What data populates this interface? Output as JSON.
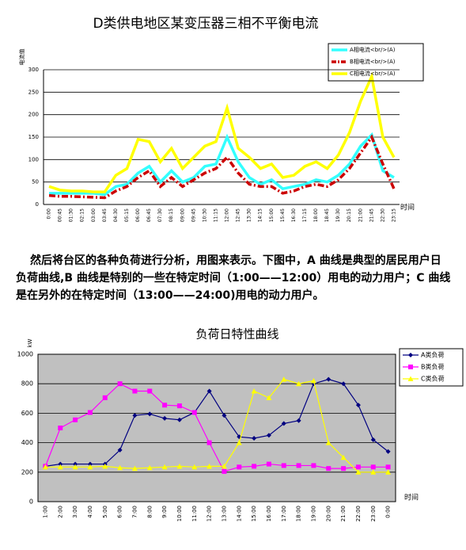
{
  "chart_data": [
    {
      "type": "line",
      "title": "D类供电地区某变压器三相不平衡电流",
      "ylabel": "电流值",
      "xlabel": "时间",
      "categories": [
        "0:00",
        "00:45",
        "01:30",
        "02:15",
        "03:00",
        "03:45",
        "04:30",
        "05:15",
        "06:00",
        "06:45",
        "07:30",
        "08:15",
        "09:00",
        "09:45",
        "10:30",
        "11:15",
        "12:00",
        "12:45",
        "13:30",
        "14:15",
        "15:00",
        "15:45",
        "16:30",
        "17:15",
        "18:00",
        "18:45",
        "19:30",
        "20:15",
        "21:00",
        "21:45",
        "22:30",
        "23:15"
      ],
      "series": [
        {
          "name": "A相电流<br/>(A)",
          "color": "#33ffff",
          "values": [
            25,
            25,
            25,
            25,
            25,
            22,
            40,
            45,
            70,
            85,
            50,
            75,
            50,
            60,
            85,
            90,
            150,
            95,
            60,
            45,
            55,
            35,
            40,
            45,
            55,
            50,
            65,
            90,
            130,
            155,
            75,
            60
          ]
        },
        {
          "name": "B相电流<br/>(A)",
          "color": "#cc0000",
          "line_style": "dashed",
          "values": [
            20,
            18,
            18,
            17,
            16,
            15,
            30,
            40,
            60,
            75,
            40,
            60,
            40,
            55,
            70,
            80,
            105,
            70,
            45,
            40,
            40,
            25,
            30,
            40,
            45,
            40,
            55,
            80,
            115,
            150,
            90,
            35
          ]
        },
        {
          "name": "C相电流<br/>(A)",
          "color": "#ffff00",
          "values": [
            40,
            32,
            30,
            30,
            28,
            28,
            65,
            80,
            145,
            140,
            95,
            125,
            80,
            105,
            130,
            140,
            215,
            125,
            105,
            80,
            90,
            60,
            65,
            85,
            95,
            80,
            110,
            160,
            230,
            285,
            150,
            105
          ]
        }
      ],
      "ylim": [
        0,
        300
      ],
      "yticks": [
        0,
        50,
        100,
        150,
        200,
        250,
        300
      ],
      "grid": true,
      "legend": "top-right"
    },
    {
      "type": "line",
      "title": "负荷日特性曲线",
      "ylabel": "kW",
      "xlabel": "时间",
      "categories": [
        "1:00",
        "2:00",
        "3:00",
        "4:00",
        "5:00",
        "6:00",
        "7:00",
        "8:00",
        "9:00",
        "10:00",
        "11:00",
        "12:00",
        "13:00",
        "14:00",
        "15:00",
        "16:00",
        "17:00",
        "18:00",
        "19:00",
        "20:00",
        "21:00",
        "22:00",
        "23:00",
        "0:00"
      ],
      "series": [
        {
          "name": "A类负荷",
          "color": "#000080",
          "marker": "diamond",
          "values": [
            240,
            255,
            255,
            255,
            255,
            350,
            585,
            595,
            565,
            555,
            605,
            750,
            585,
            440,
            430,
            450,
            530,
            550,
            800,
            830,
            800,
            655,
            420,
            340
          ]
        },
        {
          "name": "B类负荷",
          "color": "#ff00ff",
          "marker": "square",
          "values": [
            240,
            500,
            555,
            605,
            705,
            800,
            750,
            750,
            655,
            650,
            605,
            400,
            205,
            235,
            240,
            255,
            245,
            245,
            245,
            225,
            225,
            235,
            235,
            235
          ]
        },
        {
          "name": "C类负荷",
          "color": "#ffff00",
          "marker": "triangle",
          "values": [
            235,
            235,
            235,
            235,
            240,
            230,
            225,
            230,
            235,
            240,
            235,
            240,
            240,
            400,
            750,
            705,
            830,
            800,
            820,
            400,
            300,
            200,
            200,
            200
          ]
        }
      ],
      "ylim": [
        0,
        1000
      ],
      "yticks": [
        0,
        200,
        400,
        600,
        800,
        1000
      ],
      "grid": true,
      "plot_background": "#c0c0c0",
      "legend": "top-right"
    }
  ],
  "paragraph": "然后将台区的各种负荷进行分析，用图来表示。下图中，A 曲线是典型的居民用户日负荷曲线,B 曲线是特别的一些在特定时间（1:00——12:00）用电的动力用户；C 曲线是在另外的在特定时间（13:00——24:00)用电的动力用户。"
}
